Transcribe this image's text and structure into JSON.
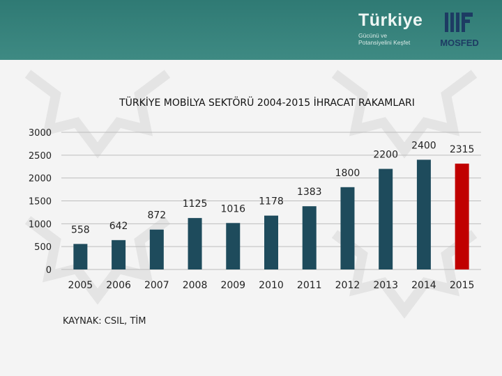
{
  "header": {
    "brand_title": "Türkiye",
    "brand_sub_1": "Gücünü ve",
    "brand_sub_2": "Potansiyelini Keşfet",
    "org": "MOSFED"
  },
  "chart_data": {
    "type": "bar",
    "title": "TÜRKİYE MOBİLYA SEKTÖRÜ 2004-2015 İHRACAT RAKAMLARI",
    "categories": [
      "2005",
      "2006",
      "2007",
      "2008",
      "2009",
      "2010",
      "2011",
      "2012",
      "2013",
      "2014",
      "2015"
    ],
    "values": [
      558,
      642,
      872,
      1125,
      1016,
      1178,
      1383,
      1800,
      2200,
      2400,
      2315
    ],
    "ylim": [
      0,
      3000
    ],
    "yticks": [
      0,
      500,
      1000,
      1500,
      2000,
      2500,
      3000
    ],
    "xlabel": "",
    "ylabel": "",
    "grid": true,
    "colors": {
      "bar": "#1e4b5c",
      "highlight": "#c00000",
      "highlight_index": 10
    }
  },
  "source": "KAYNAK: CSIL, TİM"
}
